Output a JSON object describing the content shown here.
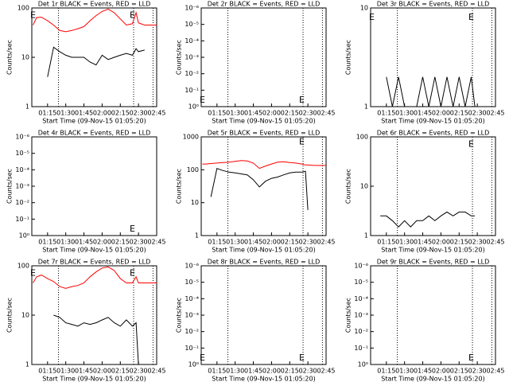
{
  "chart_data": [
    {
      "type": "line",
      "title": "Det 1r BLACK = Events, RED = LLD",
      "xlabel": "Start Time (09-Nov-15 01:05:20)",
      "ylabel": "Counts/sec",
      "ylog": true,
      "xlim": [
        62,
        165
      ],
      "ylim": [
        1,
        100
      ],
      "yticks": [
        1,
        10,
        100
      ],
      "xticks": [
        {
          "value": 75,
          "label": "01:15"
        },
        {
          "value": 90,
          "label": "01:30"
        },
        {
          "value": 105,
          "label": "01:45"
        },
        {
          "value": 120,
          "label": "02:00"
        },
        {
          "value": 135,
          "label": "02:15"
        },
        {
          "value": 150,
          "label": "02:30"
        },
        {
          "value": 165,
          "label": "02:45"
        }
      ],
      "vlines": [
        84,
        146,
        162
      ],
      "annotations": [
        {
          "text": "E",
          "x": 63,
          "y": 70
        },
        {
          "text": "E",
          "x": 145,
          "y": 70
        }
      ],
      "x": [
        63,
        66,
        70,
        75,
        80,
        85,
        90,
        95,
        100,
        105,
        110,
        115,
        120,
        125,
        130,
        135,
        140,
        145,
        148,
        150,
        155,
        160,
        165
      ],
      "series": [
        {
          "color": "#ff0000",
          "values": [
            45,
            64,
            65,
            55,
            45,
            35,
            33,
            35,
            38,
            42,
            55,
            70,
            85,
            95,
            80,
            60,
            45,
            48,
            80,
            50,
            45,
            45,
            45
          ]
        },
        {
          "color": "#000000",
          "values": [
            null,
            null,
            null,
            4,
            16,
            13,
            11,
            10,
            10,
            10,
            8,
            7,
            11,
            9,
            10,
            11,
            12,
            11,
            15,
            13,
            14,
            null,
            null
          ]
        }
      ]
    },
    {
      "type": "line",
      "title": "Det 2r BLACK = Events, RED = LLD",
      "xlabel": "Start Time (09-Nov-15 01:05:20)",
      "ylabel": "Counts/sec",
      "ylog": true,
      "xlim": [
        62,
        165
      ],
      "ylim": [
        1,
        1e-06
      ],
      "yticks": [
        {
          "value": 1,
          "label": "10⁰"
        },
        {
          "value": 0.1,
          "label": "10⁻¹"
        },
        {
          "value": 0.01,
          "label": "10⁻²"
        },
        {
          "value": 0.001,
          "label": "10⁻³"
        },
        {
          "value": 0.0001,
          "label": "10⁻⁴"
        },
        {
          "value": 1e-05,
          "label": "10⁻⁵"
        },
        {
          "value": 1e-06,
          "label": "10⁻⁶"
        }
      ],
      "xticks": [
        {
          "value": 75,
          "label": "01:15"
        },
        {
          "value": 90,
          "label": "01:30"
        },
        {
          "value": 105,
          "label": "01:45"
        },
        {
          "value": 120,
          "label": "02:00"
        },
        {
          "value": 135,
          "label": "02:15"
        },
        {
          "value": 150,
          "label": "02:30"
        },
        {
          "value": 165,
          "label": "02:45"
        }
      ],
      "vlines": [
        84,
        146,
        162
      ],
      "annotations": [
        {
          "text": "E",
          "x": 63,
          "y": 0.4
        },
        {
          "text": "E",
          "x": 145,
          "y": 0.4
        }
      ]
    },
    {
      "type": "line",
      "title": "Det 3r BLACK = Events, RED = LLD",
      "xlabel": "Start Time (09-Nov-15 01:05:20)",
      "ylabel": "Counts/sec",
      "ylog": true,
      "xlim": [
        62,
        165
      ],
      "ylim": [
        1,
        10
      ],
      "yticks": [
        1,
        10
      ],
      "xticks": [
        {
          "value": 75,
          "label": "01:15"
        },
        {
          "value": 90,
          "label": "01:30"
        },
        {
          "value": 105,
          "label": "01:45"
        },
        {
          "value": 120,
          "label": "02:00"
        },
        {
          "value": 135,
          "label": "02:15"
        },
        {
          "value": 150,
          "label": "02:30"
        },
        {
          "value": 165,
          "label": "02:45"
        }
      ],
      "vlines": [
        84,
        146,
        162
      ],
      "annotations": [
        {
          "text": "E",
          "x": 63,
          "y": 8
        },
        {
          "text": "E",
          "x": 145,
          "y": 8
        }
      ],
      "x": [
        63,
        66,
        70,
        75,
        80,
        85,
        90,
        95,
        100,
        105,
        110,
        115,
        120,
        125,
        130,
        135,
        140,
        145,
        148,
        150,
        155,
        160,
        165
      ],
      "series": [
        {
          "color": "#000000",
          "values": [
            null,
            null,
            null,
            2,
            1,
            2,
            1,
            1,
            1,
            2,
            1,
            2,
            1,
            2,
            1,
            2,
            1,
            2,
            1,
            null,
            null,
            null,
            null
          ]
        }
      ]
    },
    {
      "type": "line",
      "title": "Det 4r BLACK = Events, RED = LLD",
      "xlabel": "Start Time (09-Nov-15 01:05:20)",
      "ylabel": "Counts/sec",
      "ylog": true,
      "xlim": [
        62,
        165
      ],
      "ylim": [
        1,
        1e-06
      ],
      "yticks": [
        {
          "value": 1,
          "label": "10⁰"
        },
        {
          "value": 0.1,
          "label": "10⁻¹"
        },
        {
          "value": 0.01,
          "label": "10⁻²"
        },
        {
          "value": 0.001,
          "label": "10⁻³"
        },
        {
          "value": 0.0001,
          "label": "10⁻⁴"
        },
        {
          "value": 1e-05,
          "label": "10⁻⁵"
        },
        {
          "value": 1e-06,
          "label": "10⁻⁶"
        }
      ],
      "xticks": [
        {
          "value": 75,
          "label": "01:15"
        },
        {
          "value": 90,
          "label": "01:30"
        },
        {
          "value": 105,
          "label": "01:45"
        },
        {
          "value": 120,
          "label": "02:00"
        },
        {
          "value": 135,
          "label": "02:15"
        },
        {
          "value": 150,
          "label": "02:30"
        },
        {
          "value": 165,
          "label": "02:45"
        }
      ],
      "vlines": [],
      "annotations": [
        {
          "text": "E",
          "x": 145,
          "y": 0.4
        }
      ]
    },
    {
      "type": "line",
      "title": "Det 5r BLACK = Events, RED = LLD",
      "xlabel": "Start Time (09-Nov-15 01:05:20)",
      "ylabel": "Counts/sec",
      "ylog": true,
      "xlim": [
        62,
        165
      ],
      "ylim": [
        1,
        1000
      ],
      "yticks": [
        1,
        10,
        100,
        1000
      ],
      "xticks": [
        {
          "value": 75,
          "label": "01:15"
        },
        {
          "value": 90,
          "label": "01:30"
        },
        {
          "value": 105,
          "label": "01:45"
        },
        {
          "value": 120,
          "label": "02:00"
        },
        {
          "value": 135,
          "label": "02:15"
        },
        {
          "value": 150,
          "label": "02:30"
        },
        {
          "value": 165,
          "label": "02:45"
        }
      ],
      "vlines": [
        84,
        146,
        162
      ],
      "annotations": [
        {
          "text": "E",
          "x": 145,
          "y": 700
        }
      ],
      "x": [
        63,
        66,
        70,
        75,
        80,
        85,
        90,
        95,
        100,
        105,
        110,
        115,
        120,
        125,
        130,
        135,
        140,
        145,
        148,
        150,
        155,
        160,
        165
      ],
      "series": [
        {
          "color": "#ff0000",
          "values": [
            150,
            150,
            155,
            160,
            165,
            170,
            180,
            190,
            185,
            160,
            110,
            130,
            150,
            170,
            175,
            165,
            160,
            150,
            140,
            140,
            135,
            135,
            135
          ]
        },
        {
          "color": "#000000",
          "values": [
            null,
            null,
            15,
            110,
            95,
            85,
            80,
            75,
            70,
            50,
            30,
            45,
            55,
            60,
            70,
            80,
            85,
            85,
            90,
            6,
            null,
            null,
            null
          ]
        }
      ]
    },
    {
      "type": "line",
      "title": "Det 6r BLACK = Events, RED = LLD",
      "xlabel": "Start Time (09-Nov-15 01:05:20)",
      "ylabel": "Counts/sec",
      "ylog": true,
      "xlim": [
        62,
        165
      ],
      "ylim": [
        1,
        100
      ],
      "yticks": [
        1,
        10,
        100
      ],
      "xticks": [
        {
          "value": 75,
          "label": "01:15"
        },
        {
          "value": 90,
          "label": "01:30"
        },
        {
          "value": 105,
          "label": "01:45"
        },
        {
          "value": 120,
          "label": "02:00"
        },
        {
          "value": 135,
          "label": "02:15"
        },
        {
          "value": 150,
          "label": "02:30"
        },
        {
          "value": 165,
          "label": "02:45"
        }
      ],
      "vlines": [
        84,
        146,
        162
      ],
      "annotations": [
        {
          "text": "E",
          "x": 145,
          "y": 70
        }
      ],
      "x": [
        63,
        66,
        70,
        75,
        80,
        85,
        90,
        95,
        100,
        105,
        110,
        115,
        120,
        125,
        130,
        135,
        140,
        145,
        148,
        150,
        155,
        160,
        165
      ],
      "series": [
        {
          "color": "#000000",
          "values": [
            null,
            null,
            2.5,
            2.5,
            2,
            1.5,
            2,
            1.5,
            2,
            2,
            2.5,
            2,
            2.5,
            3,
            2.5,
            3,
            3,
            2.5,
            2.5,
            null,
            null,
            null,
            null
          ]
        }
      ]
    },
    {
      "type": "line",
      "title": "Det 7r BLACK = Events, RED = LLD",
      "xlabel": "Start Time (09-Nov-15 01:05:20)",
      "ylabel": "Counts/sec",
      "ylog": true,
      "xlim": [
        62,
        165
      ],
      "ylim": [
        1,
        100
      ],
      "yticks": [
        1,
        10,
        100
      ],
      "xticks": [
        {
          "value": 75,
          "label": "01:15"
        },
        {
          "value": 90,
          "label": "01:30"
        },
        {
          "value": 105,
          "label": "01:45"
        },
        {
          "value": 120,
          "label": "02:00"
        },
        {
          "value": 135,
          "label": "02:15"
        },
        {
          "value": 150,
          "label": "02:30"
        },
        {
          "value": 165,
          "label": "02:45"
        }
      ],
      "vlines": [
        84,
        146,
        162
      ],
      "annotations": [
        {
          "text": "E",
          "x": 63,
          "y": 70
        },
        {
          "text": "E",
          "x": 145,
          "y": 70
        }
      ],
      "x": [
        63,
        66,
        70,
        75,
        80,
        85,
        90,
        95,
        100,
        105,
        110,
        115,
        120,
        125,
        130,
        135,
        140,
        145,
        148,
        150,
        155,
        160,
        165
      ],
      "series": [
        {
          "color": "#ff0000",
          "values": [
            45,
            60,
            65,
            55,
            48,
            38,
            35,
            38,
            40,
            45,
            60,
            75,
            90,
            95,
            80,
            55,
            45,
            45,
            60,
            45,
            45,
            45,
            45
          ]
        },
        {
          "color": "#000000",
          "values": [
            null,
            null,
            null,
            null,
            10,
            9,
            7,
            6.5,
            6,
            7,
            6.5,
            7,
            8,
            9,
            7,
            6,
            8,
            6,
            7,
            1,
            null,
            null,
            null
          ]
        }
      ]
    },
    {
      "type": "line",
      "title": "Det 8r BLACK = Events, RED = LLD",
      "xlabel": "Start Time (09-Nov-15 01:05:20)",
      "ylabel": "Counts/sec",
      "ylog": true,
      "xlim": [
        62,
        165
      ],
      "ylim": [
        1,
        1e-06
      ],
      "yticks": [
        {
          "value": 1,
          "label": "10⁰"
        },
        {
          "value": 0.1,
          "label": "10⁻¹"
        },
        {
          "value": 0.01,
          "label": "10⁻²"
        },
        {
          "value": 0.001,
          "label": "10⁻³"
        },
        {
          "value": 0.0001,
          "label": "10⁻⁴"
        },
        {
          "value": 1e-05,
          "label": "10⁻⁵"
        },
        {
          "value": 1e-06,
          "label": "10⁻⁶"
        }
      ],
      "xticks": [
        {
          "value": 75,
          "label": "01:15"
        },
        {
          "value": 90,
          "label": "01:30"
        },
        {
          "value": 105,
          "label": "01:45"
        },
        {
          "value": 120,
          "label": "02:00"
        },
        {
          "value": 135,
          "label": "02:15"
        },
        {
          "value": 150,
          "label": "02:30"
        },
        {
          "value": 165,
          "label": "02:45"
        }
      ],
      "vlines": [
        84,
        146,
        162
      ],
      "annotations": [
        {
          "text": "E",
          "x": 63,
          "y": 0.4
        },
        {
          "text": "E",
          "x": 145,
          "y": 0.4
        }
      ]
    },
    {
      "type": "line",
      "title": "Det 9r BLACK = Events, RED = LLD",
      "xlabel": "Start Time (09-Nov-15 01:05:20)",
      "ylabel": "Counts/sec",
      "ylog": true,
      "xlim": [
        62,
        165
      ],
      "ylim": [
        1,
        1e-06
      ],
      "yticks": [
        {
          "value": 1,
          "label": "10⁰"
        },
        {
          "value": 0.1,
          "label": "10⁻¹"
        },
        {
          "value": 0.01,
          "label": "10⁻²"
        },
        {
          "value": 0.001,
          "label": "10⁻³"
        },
        {
          "value": 0.0001,
          "label": "10⁻⁴"
        },
        {
          "value": 1e-05,
          "label": "10⁻⁵"
        },
        {
          "value": 1e-06,
          "label": "10⁻⁶"
        }
      ],
      "xticks": [
        {
          "value": 75,
          "label": "01:15"
        },
        {
          "value": 90,
          "label": "01:30"
        },
        {
          "value": 105,
          "label": "01:45"
        },
        {
          "value": 120,
          "label": "02:00"
        },
        {
          "value": 135,
          "label": "02:15"
        },
        {
          "value": 150,
          "label": "02:30"
        },
        {
          "value": 165,
          "label": "02:45"
        }
      ],
      "vlines": [
        84,
        146,
        162
      ],
      "annotations": [
        {
          "text": "E",
          "x": 145,
          "y": 0.4
        }
      ]
    }
  ]
}
